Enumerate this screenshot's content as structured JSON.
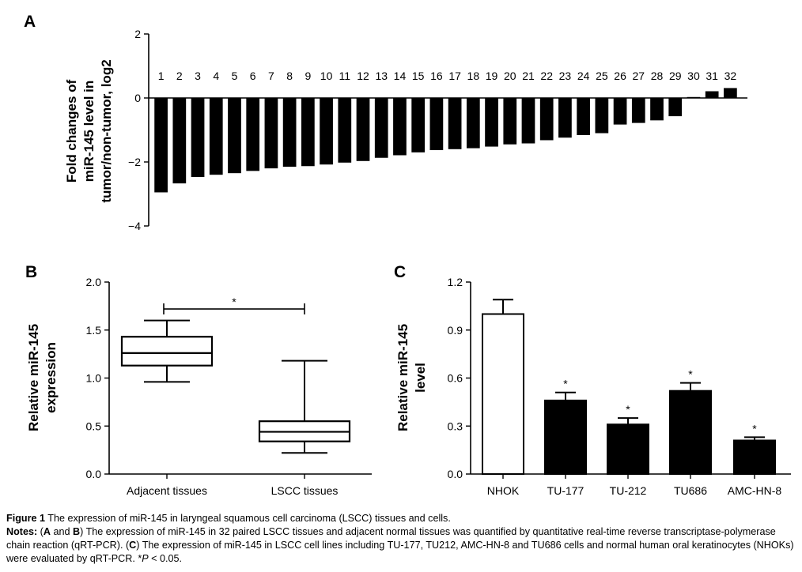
{
  "chart_data": [
    {
      "panel": "A",
      "type": "bar",
      "ylabel": [
        "Fold changes of",
        "miR-145 level in",
        "tumor/non-tumor, log2"
      ],
      "ylim": [
        -4,
        2
      ],
      "yticks": [
        2,
        0,
        -2,
        -4
      ],
      "ytick_labels": [
        "2",
        "0",
        "−2",
        "−4"
      ],
      "categories": [
        "1",
        "2",
        "3",
        "4",
        "5",
        "6",
        "7",
        "8",
        "9",
        "10",
        "11",
        "12",
        "13",
        "14",
        "15",
        "16",
        "17",
        "18",
        "19",
        "20",
        "21",
        "22",
        "23",
        "24",
        "25",
        "26",
        "27",
        "28",
        "29",
        "30",
        "31",
        "32"
      ],
      "values": [
        -2.95,
        -2.67,
        -2.47,
        -2.4,
        -2.35,
        -2.28,
        -2.2,
        -2.15,
        -2.13,
        -2.08,
        -2.02,
        -1.97,
        -1.87,
        -1.79,
        -1.7,
        -1.63,
        -1.6,
        -1.57,
        -1.52,
        -1.45,
        -1.42,
        -1.32,
        -1.24,
        -1.16,
        -1.1,
        -0.83,
        -0.78,
        -0.7,
        -0.57,
        0.03,
        0.21,
        0.31
      ]
    },
    {
      "panel": "B",
      "type": "box",
      "ylabel": [
        "Relative miR-145",
        "expression"
      ],
      "ylim": [
        0,
        2
      ],
      "yticks": [
        0,
        0.5,
        1,
        1.5,
        2
      ],
      "ytick_labels": [
        "0.0",
        "0.5",
        "1.0",
        "1.5",
        "2.0"
      ],
      "categories": [
        "Adjacent tissues",
        "LSCC tissues"
      ],
      "boxes": [
        {
          "min": 0.96,
          "q1": 1.13,
          "median": 1.26,
          "q3": 1.43,
          "max": 1.6
        },
        {
          "min": 0.22,
          "q1": 0.34,
          "median": 0.44,
          "q3": 0.55,
          "max": 1.18
        }
      ],
      "significance": {
        "bracket_y": 1.72,
        "label": "*"
      }
    },
    {
      "panel": "C",
      "type": "bar",
      "ylabel": [
        "Relative miR-145",
        "level"
      ],
      "ylim": [
        0,
        1.2
      ],
      "yticks": [
        0,
        0.3,
        0.6,
        0.9,
        1.2
      ],
      "ytick_labels": [
        "0.0",
        "0.3",
        "0.6",
        "0.9",
        "1.2"
      ],
      "categories": [
        "NHOK",
        "TU-177",
        "TU-212",
        "TU686",
        "AMC-HN-8"
      ],
      "values": [
        1.0,
        0.46,
        0.31,
        0.52,
        0.21
      ],
      "errors": [
        0.09,
        0.05,
        0.04,
        0.05,
        0.02
      ],
      "fills": [
        "open",
        "solid",
        "solid",
        "solid",
        "solid"
      ],
      "significance_labels": [
        "",
        "*",
        "*",
        "*",
        "*"
      ]
    }
  ],
  "caption": {
    "figure_label": "Figure 1",
    "title_text": " The expression of miR-145 in laryngeal squamous cell carcinoma (LSCC) tissues and cells.",
    "notes_label": "Notes:",
    "notes_open": " (",
    "notes_a": "A",
    "notes_and": " and ",
    "notes_b": "B",
    "notes_text1": ") The expression of miR-145 in 32 paired LSCC tissues and adjacent normal tissues was quantified by quantitative real-time reverse transcriptase-polymerase chain reaction (qRT-PCR). (",
    "notes_c": "C",
    "notes_text2": ") The expression of miR-145 in LSCC cell lines including TU-177, TU212, AMC-HN-8 and TU686 cells and normal human oral keratinocytes (NHOKs) were evaluated by qRT-PCR. *",
    "notes_p": "P",
    "notes_end": " < 0.05."
  },
  "colors": {
    "bar": "#000000",
    "axis": "#000000",
    "open_fill": "#ffffff"
  }
}
